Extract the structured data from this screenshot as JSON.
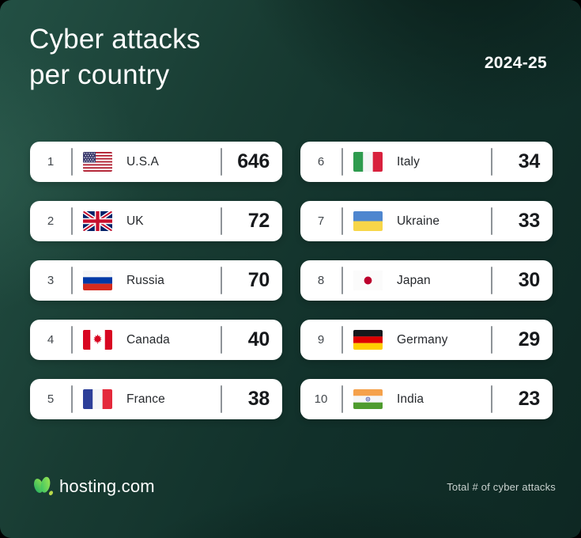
{
  "header": {
    "title_line1": "Cyber attacks",
    "title_line2": "per country",
    "badge": "2024-25"
  },
  "rows": [
    {
      "rank": "1",
      "country": "U.S.A",
      "value": "646",
      "flag": "usa",
      "flag_icon": "usa-flag-icon"
    },
    {
      "rank": "2",
      "country": "UK",
      "value": "72",
      "flag": "uk",
      "flag_icon": "uk-flag-icon"
    },
    {
      "rank": "3",
      "country": "Russia",
      "value": "70",
      "flag": "russia",
      "flag_icon": "russia-flag-icon"
    },
    {
      "rank": "4",
      "country": "Canada",
      "value": "40",
      "flag": "canada",
      "flag_icon": "canada-flag-icon"
    },
    {
      "rank": "5",
      "country": "France",
      "value": "38",
      "flag": "france",
      "flag_icon": "france-flag-icon"
    },
    {
      "rank": "6",
      "country": "Italy",
      "value": "34",
      "flag": "italy",
      "flag_icon": "italy-flag-icon"
    },
    {
      "rank": "7",
      "country": "Ukraine",
      "value": "33",
      "flag": "ukraine",
      "flag_icon": "ukraine-flag-icon"
    },
    {
      "rank": "8",
      "country": "Japan",
      "value": "30",
      "flag": "japan",
      "flag_icon": "japan-flag-icon"
    },
    {
      "rank": "9",
      "country": "Germany",
      "value": "29",
      "flag": "germany",
      "flag_icon": "germany-flag-icon"
    },
    {
      "rank": "10",
      "country": "India",
      "value": "23",
      "flag": "india",
      "flag_icon": "india-flag-icon"
    }
  ],
  "footer": {
    "brand": "hosting.com",
    "logo_icon": "hosting-leaf-logo",
    "note": "Total # of cyber attacks"
  },
  "colors": {
    "background_light": "#235044",
    "background_dark": "#0e2823",
    "card": "#ffffff",
    "value_text": "#17191c",
    "divider": "#8e9398",
    "logo_green": "#2fbf66",
    "logo_lime": "#b9d94a",
    "note_text": "#c9d2cf"
  },
  "chart_data": {
    "type": "table",
    "title": "Cyber attacks per country",
    "period": "2024-25",
    "categories": [
      "U.S.A",
      "UK",
      "Russia",
      "Canada",
      "France",
      "Italy",
      "Ukraine",
      "Japan",
      "Germany",
      "India"
    ],
    "values": [
      646,
      72,
      70,
      40,
      38,
      34,
      33,
      30,
      29,
      23
    ],
    "value_label": "Total # of cyber attacks",
    "layout": "two-column ranked list, ranks 1-5 left column, 6-10 right column"
  }
}
